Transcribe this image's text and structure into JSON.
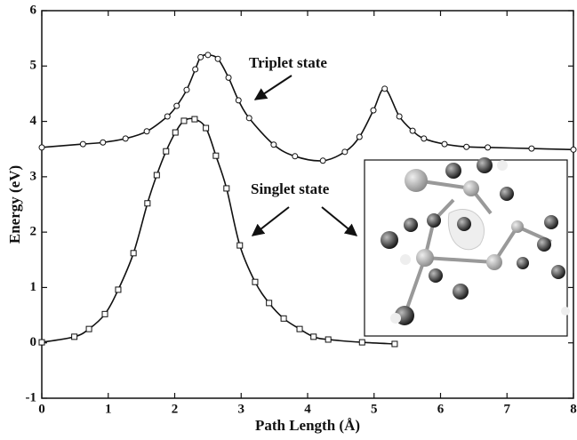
{
  "chart_data": {
    "type": "line",
    "xlabel": "Path Length (Å)",
    "ylabel": "Energy (eV)",
    "xlim": [
      0,
      8
    ],
    "ylim": [
      -1,
      6
    ],
    "xticks": [
      0,
      1,
      2,
      3,
      4,
      5,
      6,
      7,
      8
    ],
    "yticks": [
      -1,
      0,
      1,
      2,
      3,
      4,
      5,
      6
    ],
    "series": [
      {
        "name": "Triplet state",
        "color": "#111111",
        "marker": "circle",
        "x": [
          0,
          0.62,
          0.92,
          1.26,
          1.58,
          1.89,
          2.03,
          2.18,
          2.31,
          2.39,
          2.5,
          2.65,
          2.81,
          2.96,
          3.12,
          3.49,
          3.81,
          4.23,
          4.56,
          4.78,
          4.99,
          5.16,
          5.38,
          5.58,
          5.75,
          6.06,
          6.39,
          6.71,
          7.37,
          8.0
        ],
        "values": [
          3.53,
          3.59,
          3.62,
          3.69,
          3.82,
          4.09,
          4.28,
          4.57,
          4.94,
          5.16,
          5.2,
          5.13,
          4.79,
          4.38,
          4.06,
          3.58,
          3.37,
          3.29,
          3.45,
          3.72,
          4.2,
          4.59,
          4.09,
          3.83,
          3.69,
          3.59,
          3.54,
          3.53,
          3.51,
          3.49
        ]
      },
      {
        "name": "Singlet state",
        "color": "#111111",
        "marker": "square",
        "x": [
          0,
          0.49,
          0.71,
          0.95,
          1.15,
          1.38,
          1.59,
          1.73,
          1.87,
          2.01,
          2.14,
          2.3,
          2.47,
          2.62,
          2.78,
          2.98,
          3.21,
          3.42,
          3.64,
          3.88,
          4.09,
          4.31,
          4.82,
          5.31
        ],
        "values": [
          0.01,
          0.11,
          0.25,
          0.52,
          0.96,
          1.62,
          2.52,
          3.03,
          3.46,
          3.8,
          4.01,
          4.04,
          3.88,
          3.38,
          2.79,
          1.76,
          1.1,
          0.72,
          0.44,
          0.25,
          0.11,
          0.06,
          0.01,
          -0.02
        ]
      }
    ]
  }
}
